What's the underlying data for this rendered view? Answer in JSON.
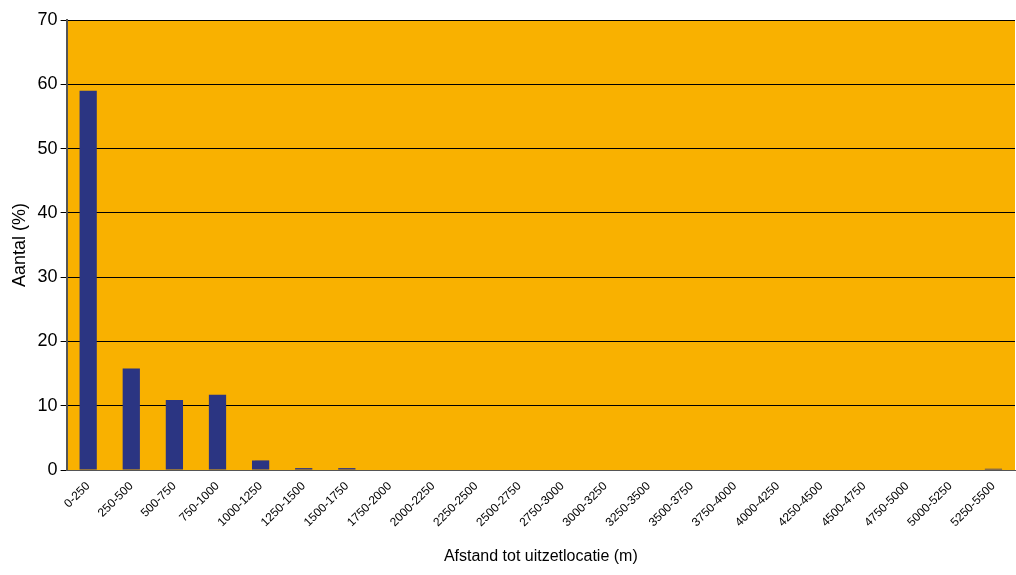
{
  "chart_data": {
    "type": "bar",
    "xlabel": "Afstand tot uitzetlocatie (m)",
    "ylabel": "Aantal (%)",
    "categories": [
      "0-250",
      "250-500",
      "500-750",
      "750-1000",
      "1000-1250",
      "1250-1500",
      "1500-1750",
      "1750-2000",
      "2000-2250",
      "2250-2500",
      "2500-2750",
      "2750-3000",
      "3000-3250",
      "3250-3500",
      "3500-3750",
      "3750-4000",
      "4000-4250",
      "4250-4500",
      "4500-4750",
      "4750-5000",
      "5000-5250",
      "5250-5500"
    ],
    "values": [
      59,
      15.8,
      10.9,
      11.7,
      1.5,
      0.3,
      0.3,
      0,
      0,
      0,
      0,
      0,
      0,
      0,
      0,
      0,
      0,
      0,
      0,
      0,
      0,
      0.2
    ],
    "color": "#2b3582",
    "ylim": [
      0,
      70
    ],
    "yticks": [
      0,
      10,
      20,
      30,
      40,
      50,
      60,
      70
    ],
    "grid": "y",
    "legend": false
  }
}
